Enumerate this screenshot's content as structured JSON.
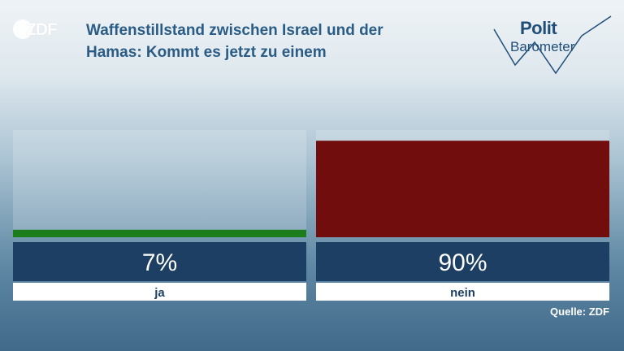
{
  "header": {
    "logo_text": "ZDF",
    "title_line1": "Waffenstillstand zwischen Israel und der",
    "title_line2": "Hamas: Kommt es jetzt zu einem",
    "politbarometer_line1": "Polit",
    "politbarometer_line2": "Barometer"
  },
  "footer": {
    "source": "Quelle: ZDF"
  },
  "colors": {
    "ja": "#1b7d1b",
    "nein": "#720d0d",
    "label_bg": "#1c3f63"
  },
  "chart_data": {
    "type": "bar",
    "categories": [
      "ja",
      "nein"
    ],
    "values": [
      7,
      90
    ],
    "value_labels": [
      "7%",
      "90%"
    ],
    "ylim": [
      0,
      100
    ],
    "colors": [
      "#1b7d1b",
      "#720d0d"
    ]
  }
}
